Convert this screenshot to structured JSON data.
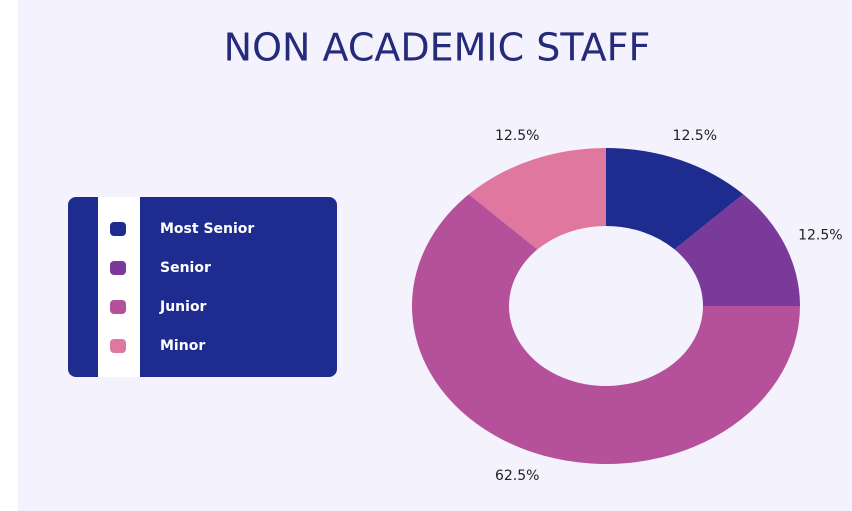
{
  "chart_data": {
    "type": "donut",
    "title": "NON ACADEMIC STAFF",
    "categories": [
      "Most Senior",
      "Senior",
      "Junior",
      "Minor"
    ],
    "values": [
      12.5,
      12.5,
      62.5,
      12.5
    ],
    "value_labels": [
      "12.5%",
      "12.5%",
      "62.5%",
      "12.5%"
    ],
    "colors": [
      "#1e2b8f",
      "#7a3a9a",
      "#b5519a",
      "#e0779f"
    ]
  }
}
